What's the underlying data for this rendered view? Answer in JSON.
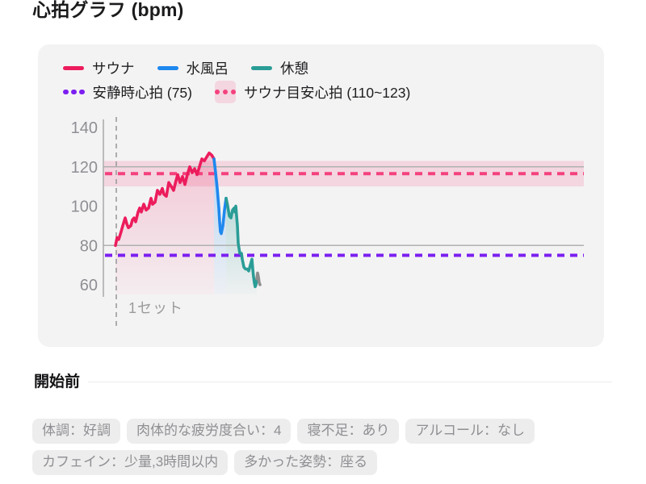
{
  "page": {
    "title": "心拍グラフ (bpm)"
  },
  "colors": {
    "sauna": "#ec1c5c",
    "water_bath": "#1e88ee",
    "rest": "#2a9d96",
    "tail": "#8e8e8e",
    "resting_line": "#7c1ff0",
    "target_line": "#f4417d",
    "target_band": "rgba(244,65,125,0.16)",
    "grid": "#b0b0b0",
    "axis": "#adadad",
    "dashed_divider": "#9c9c9c",
    "tick_text": "#8e8e93",
    "card_bg": "#f4f3f4"
  },
  "legend": {
    "series": [
      {
        "label": "サウナ",
        "color": "#ec1c5c"
      },
      {
        "label": "水風呂",
        "color": "#1e88ee"
      },
      {
        "label": "休憩",
        "color": "#2a9d96"
      }
    ],
    "reference": [
      {
        "label": "安静時心拍 (75)",
        "color": "#7c1ff0",
        "band": false
      },
      {
        "label": "サウナ目安心拍 (110~123)",
        "color": "#f4417d",
        "band": true,
        "band_color": "rgba(244,65,125,0.16)"
      }
    ]
  },
  "chart_data": {
    "type": "line",
    "title": "心拍グラフ (bpm)",
    "ylabel": "bpm",
    "ylim": [
      55,
      145
    ],
    "yticks": [
      140,
      120,
      100,
      80,
      60
    ],
    "gridlines_y": [
      120,
      80
    ],
    "grid": "horizontal-only",
    "legend_position": "top-left",
    "reference_lines": [
      {
        "label": "安静時心拍",
        "value": 75,
        "color": "#7c1ff0",
        "style": "dotted"
      },
      {
        "label": "サウナ目安心拍",
        "value": 116.5,
        "band": [
          110,
          123
        ],
        "color": "#f4417d",
        "style": "dotted"
      }
    ],
    "set_markers": [
      {
        "label": "1セット",
        "x": 144
      }
    ],
    "x_unit": "time (unlabeled)",
    "series": [
      {
        "name": "サウナ",
        "color": "#ec1c5c",
        "points": [
          [
            143,
            80
          ],
          [
            145,
            84
          ],
          [
            147,
            83
          ],
          [
            150,
            87
          ],
          [
            152,
            90
          ],
          [
            155,
            94
          ],
          [
            157,
            91
          ],
          [
            159,
            89
          ],
          [
            162,
            90
          ],
          [
            164,
            93
          ],
          [
            166,
            94
          ],
          [
            168,
            92
          ],
          [
            171,
            97
          ],
          [
            173,
            99
          ],
          [
            175,
            97
          ],
          [
            178,
            101
          ],
          [
            181,
            98
          ],
          [
            184,
            99
          ],
          [
            187,
            104
          ],
          [
            189,
            101
          ],
          [
            192,
            102
          ],
          [
            195,
            108
          ],
          [
            198,
            106
          ],
          [
            201,
            109
          ],
          [
            203,
            106
          ],
          [
            206,
            105
          ],
          [
            209,
            112
          ],
          [
            212,
            110
          ],
          [
            215,
            108
          ],
          [
            218,
            113
          ],
          [
            220,
            116
          ],
          [
            223,
            112
          ],
          [
            226,
            115
          ],
          [
            229,
            111
          ],
          [
            232,
            116
          ],
          [
            235,
            120
          ],
          [
            238,
            117
          ],
          [
            241,
            119
          ],
          [
            244,
            116
          ],
          [
            247,
            120
          ],
          [
            250,
            124
          ],
          [
            253,
            123
          ],
          [
            256,
            125
          ],
          [
            259,
            127
          ],
          [
            262,
            126
          ],
          [
            265,
            124
          ]
        ]
      },
      {
        "name": "水風呂",
        "color": "#1e88ee",
        "points": [
          [
            265,
            124
          ],
          [
            267,
            117
          ],
          [
            269,
            109
          ],
          [
            271,
            99
          ],
          [
            272,
            92
          ],
          [
            273,
            87
          ],
          [
            274,
            86
          ],
          [
            276,
            90
          ],
          [
            278,
            98
          ],
          [
            280,
            104
          ]
        ]
      },
      {
        "name": "休憩",
        "color": "#2a9d96",
        "points": [
          [
            280,
            104
          ],
          [
            282,
            100
          ],
          [
            284,
            95
          ],
          [
            286,
            94
          ],
          [
            288,
            98
          ],
          [
            290,
            99
          ],
          [
            291,
            97
          ],
          [
            292,
            100
          ],
          [
            294,
            90
          ],
          [
            295,
            81
          ],
          [
            297,
            76
          ],
          [
            299,
            76
          ],
          [
            300,
            73
          ],
          [
            302,
            69
          ],
          [
            304,
            68
          ],
          [
            306,
            68
          ],
          [
            308,
            67
          ],
          [
            310,
            70
          ],
          [
            312,
            73
          ],
          [
            313,
            68
          ],
          [
            314,
            64
          ],
          [
            315,
            61
          ],
          [
            316,
            59
          ],
          [
            317,
            60
          ],
          [
            318,
            63
          ]
        ]
      },
      {
        "name": "tail",
        "color": "#8e8e8e",
        "no_fill": true,
        "points": [
          [
            318,
            63
          ],
          [
            319,
            66
          ],
          [
            320,
            64
          ],
          [
            321,
            61
          ],
          [
            322,
            60
          ]
        ]
      }
    ]
  },
  "set_label": "1セット",
  "pre_session": {
    "heading": "開始前",
    "tags": [
      "体調：好調",
      "肉体的な疲労度合い：4",
      "寝不足：あり",
      "アルコール：なし",
      "カフェイン：少量,3時間以内",
      "多かった姿勢：座る"
    ]
  }
}
